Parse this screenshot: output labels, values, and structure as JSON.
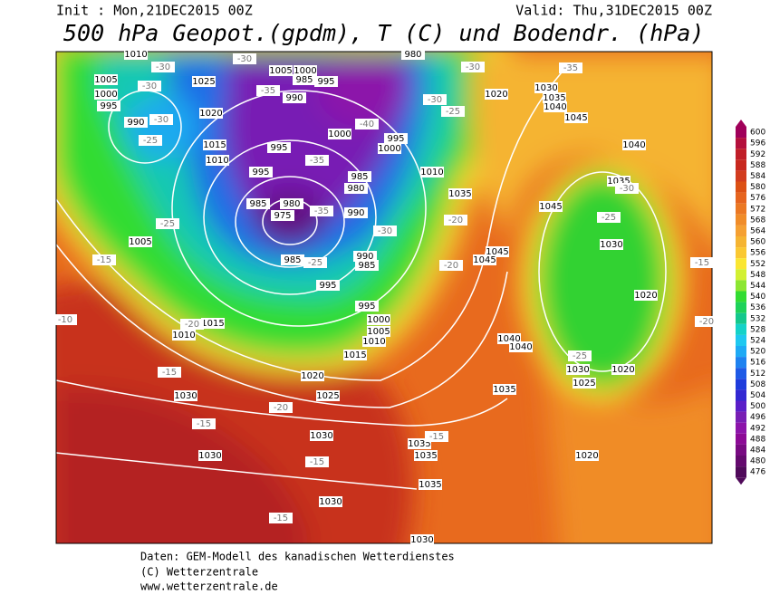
{
  "header": {
    "init": "Init : Mon,21DEC2015 00Z",
    "valid": "Valid: Thu,31DEC2015 00Z",
    "title": "500 hPa Geopot.(gpdm), T (C) und Bodendr. (hPa)"
  },
  "colorbar": {
    "labels": [
      "600",
      "596",
      "592",
      "588",
      "584",
      "580",
      "576",
      "572",
      "568",
      "564",
      "560",
      "556",
      "552",
      "548",
      "544",
      "540",
      "536",
      "532",
      "528",
      "524",
      "520",
      "516",
      "512",
      "508",
      "504",
      "500",
      "496",
      "492",
      "488",
      "484",
      "480",
      "476"
    ],
    "colors": [
      "#a0005a",
      "#b4103c",
      "#c01e28",
      "#c8281e",
      "#d23c1e",
      "#dc5014",
      "#e6641e",
      "#eb7823",
      "#f08c28",
      "#f5a032",
      "#f5b432",
      "#fac832",
      "#fae632",
      "#d2f032",
      "#8ce632",
      "#32dc32",
      "#1ed25a",
      "#14c88c",
      "#14d2c8",
      "#1ec8f0",
      "#1eaaf5",
      "#1e82f0",
      "#1e5ae6",
      "#1e3cdc",
      "#3228d2",
      "#5a1ec8",
      "#781eb4",
      "#8c14aa",
      "#8c0a96",
      "#780a82",
      "#640a6e",
      "#500a5a"
    ]
  },
  "map_labels": {
    "pressure": [
      "1010",
      "1005",
      "1000",
      "995",
      "990",
      "1025",
      "1020",
      "1015",
      "1010",
      "1005",
      "1000",
      "985",
      "995",
      "990",
      "995",
      "995",
      "1000",
      "1000",
      "995",
      "985",
      "980",
      "990",
      "980",
      "985",
      "975",
      "985",
      "990",
      "985",
      "995",
      "995",
      "1000",
      "1005",
      "1010",
      "1015",
      "1020",
      "1025",
      "1030",
      "1030",
      "1030",
      "1030",
      "1035",
      "1035",
      "1035",
      "1005",
      "1015",
      "1010",
      "1010",
      "1035",
      "1045",
      "1045",
      "1045",
      "1040",
      "1040",
      "1035",
      "1030",
      "1025",
      "1020",
      "1030",
      "1035",
      "1040",
      "1045",
      "1040",
      "1035",
      "1030",
      "1020",
      "980",
      "1020",
      "1020",
      "1030"
    ],
    "temperature": [
      "-30",
      "-30",
      "-30",
      "-25",
      "-25",
      "-15",
      "-10",
      "-20",
      "-15",
      "-20",
      "-15",
      "-15",
      "-15",
      "-30",
      "-35",
      "-40",
      "-35",
      "-35",
      "-30",
      "-25",
      "-20",
      "-20",
      "-25",
      "-30",
      "-30",
      "-35",
      "-30",
      "-25",
      "-25",
      "-15",
      "-15",
      "-20"
    ]
  },
  "footer": {
    "line1": "Daten: GEM-Modell des kanadischen Wetterdienstes",
    "line2": "(C) Wetterzentrale",
    "line3": "www.wetterzentrale.de"
  }
}
